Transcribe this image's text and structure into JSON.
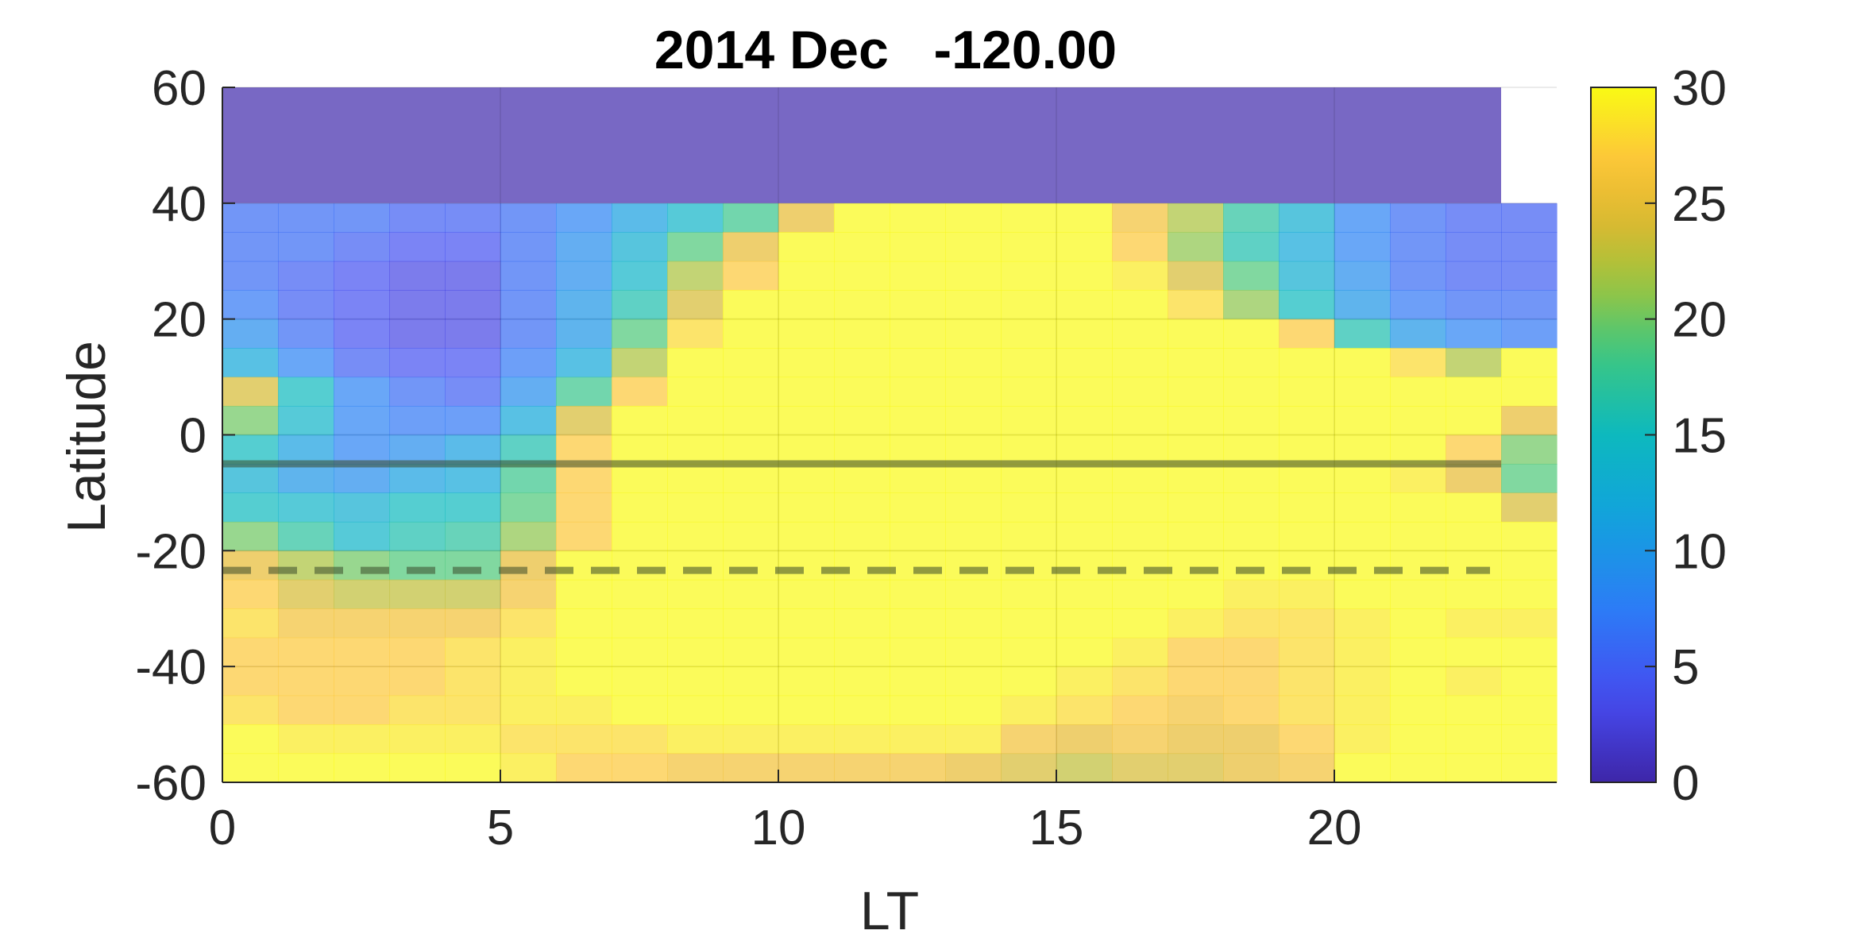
{
  "chart_data": {
    "type": "heatmap",
    "title": "2014 Dec   -120.00",
    "xlabel": "LT",
    "ylabel": "Latitude",
    "xlim": [
      0,
      24
    ],
    "ylim": [
      -60,
      60
    ],
    "x_ticks": [
      "0",
      "5",
      "10",
      "15",
      "20"
    ],
    "x_tick_values": [
      0,
      5,
      10,
      15,
      20
    ],
    "y_ticks": [
      "60",
      "40",
      "20",
      "0",
      "-20",
      "-40",
      "-60"
    ],
    "y_tick_values": [
      60,
      40,
      20,
      0,
      -20,
      -40,
      -60
    ],
    "colorbar": {
      "min": 0,
      "max": 30,
      "ticks": [
        "30",
        "25",
        "20",
        "15",
        "10",
        "5",
        "0"
      ],
      "tick_values": [
        30,
        25,
        20,
        15,
        10,
        5,
        0
      ],
      "colormap": "parula"
    },
    "grid": true,
    "masked_region": {
      "lat_min": 40,
      "lat_max": 60,
      "color": "#7868c4"
    },
    "reference_lines": [
      {
        "style": "solid",
        "latitude": -5
      },
      {
        "style": "dashed",
        "latitude": -23.4
      }
    ],
    "lt_bins": [
      0,
      1,
      2,
      3,
      4,
      5,
      6,
      7,
      8,
      9,
      10,
      11,
      12,
      13,
      14,
      15,
      16,
      17,
      18,
      19,
      20,
      21,
      22,
      23
    ],
    "lat_band_centers": [
      37.5,
      32.5,
      27.5,
      22.5,
      17.5,
      12.5,
      7.5,
      2.5,
      -2.5,
      -7.5,
      -12.5,
      -17.5,
      -22.5,
      -27.5,
      -32.5,
      -37.5,
      -42.5,
      -47.5,
      -52.5,
      -57.5
    ],
    "values": [
      [
        6,
        6,
        6,
        5,
        5,
        6,
        8,
        11,
        14,
        18,
        25,
        30,
        30,
        30,
        30,
        30,
        26,
        22,
        17,
        13,
        8,
        6,
        5,
        5
      ],
      [
        6,
        6,
        5,
        4,
        4,
        6,
        9,
        13,
        19,
        25,
        30,
        30,
        30,
        30,
        30,
        30,
        27,
        21,
        16,
        12,
        8,
        6,
        5,
        5
      ],
      [
        6,
        5,
        4,
        3,
        3,
        6,
        9,
        14,
        22,
        27,
        30,
        30,
        30,
        30,
        30,
        30,
        29,
        24,
        19,
        13,
        9,
        6,
        5,
        5
      ],
      [
        7,
        5,
        4,
        3,
        3,
        6,
        10,
        16,
        24,
        30,
        30,
        30,
        30,
        30,
        30,
        30,
        30,
        28,
        21,
        15,
        10,
        7,
        6,
        6
      ],
      [
        9,
        6,
        4,
        3,
        3,
        6,
        10,
        19,
        28,
        30,
        30,
        30,
        30,
        30,
        30,
        30,
        30,
        30,
        30,
        27,
        16,
        10,
        8,
        7
      ],
      [
        12,
        8,
        5,
        4,
        4,
        7,
        12,
        22,
        30,
        30,
        30,
        30,
        30,
        30,
        30,
        30,
        30,
        30,
        30,
        30,
        30,
        28,
        22,
        30
      ],
      [
        24,
        15,
        8,
        6,
        5,
        9,
        18,
        27,
        30,
        30,
        30,
        30,
        30,
        30,
        30,
        30,
        30,
        30,
        30,
        30,
        30,
        30,
        30,
        30
      ],
      [
        20,
        14,
        8,
        7,
        7,
        12,
        24,
        30,
        30,
        30,
        30,
        30,
        30,
        30,
        30,
        30,
        30,
        30,
        30,
        30,
        30,
        30,
        30,
        25
      ],
      [
        15,
        11,
        8,
        9,
        11,
        16,
        27,
        30,
        30,
        30,
        30,
        30,
        30,
        30,
        30,
        30,
        30,
        30,
        30,
        30,
        30,
        30,
        27,
        20
      ],
      [
        13,
        10,
        9,
        11,
        12,
        18,
        27,
        30,
        30,
        30,
        30,
        30,
        30,
        30,
        30,
        30,
        30,
        30,
        30,
        30,
        30,
        29,
        25,
        19
      ],
      [
        15,
        14,
        13,
        15,
        15,
        19,
        27,
        30,
        30,
        30,
        30,
        30,
        30,
        30,
        30,
        30,
        30,
        30,
        30,
        30,
        30,
        30,
        30,
        24
      ],
      [
        20,
        17,
        14,
        16,
        17,
        21,
        27,
        30,
        30,
        30,
        30,
        30,
        30,
        30,
        30,
        30,
        30,
        30,
        30,
        30,
        30,
        30,
        30,
        30
      ],
      [
        25,
        22,
        20,
        19,
        19,
        25,
        30,
        30,
        30,
        30,
        30,
        30,
        30,
        30,
        30,
        30,
        30,
        30,
        30,
        30,
        30,
        30,
        30,
        30
      ],
      [
        27,
        24,
        23,
        23,
        23,
        26,
        30,
        30,
        30,
        30,
        30,
        30,
        30,
        30,
        30,
        30,
        30,
        30,
        29,
        29,
        30,
        30,
        30,
        30
      ],
      [
        28,
        26,
        26,
        26,
        26,
        28,
        30,
        30,
        30,
        30,
        30,
        30,
        30,
        30,
        30,
        30,
        30,
        29,
        28,
        28,
        29,
        30,
        29,
        29
      ],
      [
        27,
        27,
        27,
        27,
        28,
        29,
        30,
        30,
        30,
        30,
        30,
        30,
        30,
        30,
        30,
        30,
        29,
        27,
        27,
        28,
        29,
        30,
        30,
        30
      ],
      [
        27,
        27,
        27,
        27,
        28,
        29,
        30,
        30,
        30,
        30,
        30,
        30,
        30,
        30,
        30,
        29,
        28,
        27,
        27,
        28,
        29,
        30,
        29,
        30
      ],
      [
        28,
        27,
        27,
        28,
        28,
        29,
        29,
        30,
        30,
        30,
        30,
        30,
        30,
        30,
        29,
        28,
        27,
        26,
        27,
        28,
        29,
        30,
        30,
        30
      ],
      [
        30,
        29,
        29,
        29,
        29,
        28,
        28,
        28,
        29,
        29,
        29,
        29,
        29,
        29,
        26,
        25,
        26,
        25,
        25,
        27,
        29,
        30,
        30,
        30
      ],
      [
        30,
        30,
        30,
        30,
        30,
        29,
        27,
        27,
        26,
        26,
        26,
        26,
        26,
        25,
        24,
        23,
        24,
        24,
        25,
        26,
        30,
        30,
        30,
        30
      ]
    ]
  }
}
